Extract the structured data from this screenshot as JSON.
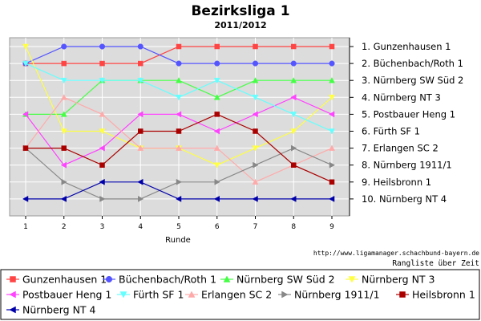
{
  "chart_data": {
    "type": "line",
    "title": "Bezirksliga 1",
    "subtitle": "2011/2012",
    "xlabel": "Runde",
    "x": [
      1,
      2,
      3,
      4,
      5,
      6,
      7,
      8,
      9
    ],
    "ylim": [
      1,
      10
    ],
    "y_reversed": true,
    "grid": true,
    "legend_position": "bottom",
    "rank_labels": [
      "1. Gunzenhausen 1",
      "2. Büchenbach/Roth 1",
      "3. Nürnberg SW Süd 2",
      "4. Nürnberg NT 3",
      "5. Postbauer Heng 1",
      "6. Fürth SF 1",
      "7. Erlangen SC 2",
      "8. Nürnberg 1911/1",
      "9. Heilsbronn 1",
      "10. Nürnberg NT 4"
    ],
    "source_url": "http://www.ligamanager.schachbund-bayern.de",
    "footer_note": "Rangliste über Zeit",
    "series": [
      {
        "name": "Gunzenhausen 1",
        "color": "#ff4444",
        "marker": "square",
        "values": [
          2,
          2,
          2,
          2,
          1,
          1,
          1,
          1,
          1
        ]
      },
      {
        "name": "Büchenbach/Roth 1",
        "color": "#5555ff",
        "marker": "circle",
        "values": [
          2,
          1,
          1,
          1,
          2,
          2,
          2,
          2,
          2
        ]
      },
      {
        "name": "Nürnberg SW Süd 2",
        "color": "#44ff44",
        "marker": "triangle-up",
        "values": [
          5,
          5,
          3,
          3,
          3,
          4,
          3,
          3,
          3
        ]
      },
      {
        "name": "Nürnberg NT 3",
        "color": "#ffff44",
        "marker": "triangle-down",
        "values": [
          1,
          6,
          6,
          7,
          7,
          8,
          7,
          6,
          4
        ]
      },
      {
        "name": "Postbauer Heng 1",
        "color": "#ff44ff",
        "marker": "triangle-left",
        "values": [
          5,
          8,
          7,
          5,
          5,
          6,
          5,
          4,
          5
        ]
      },
      {
        "name": "Fürth SF 1",
        "color": "#66ffff",
        "marker": "triangle-down",
        "values": [
          2,
          3,
          3,
          3,
          4,
          3,
          4,
          5,
          6
        ]
      },
      {
        "name": "Erlangen SC 2",
        "color": "#ffaaaa",
        "marker": "triangle-up",
        "values": [
          7,
          4,
          5,
          7,
          7,
          7,
          9,
          8,
          7
        ]
      },
      {
        "name": "Nürnberg 1911/1",
        "color": "#888888",
        "marker": "triangle-right",
        "values": [
          7,
          9,
          10,
          10,
          9,
          9,
          8,
          7,
          8
        ]
      },
      {
        "name": "Heilsbronn 1",
        "color": "#aa0000",
        "marker": "square",
        "values": [
          7,
          7,
          8,
          6,
          6,
          5,
          6,
          8,
          9
        ]
      },
      {
        "name": "Nürnberg NT 4",
        "color": "#0000aa",
        "marker": "triangle-left",
        "values": [
          10,
          10,
          9,
          9,
          10,
          10,
          10,
          10,
          10
        ]
      }
    ]
  }
}
